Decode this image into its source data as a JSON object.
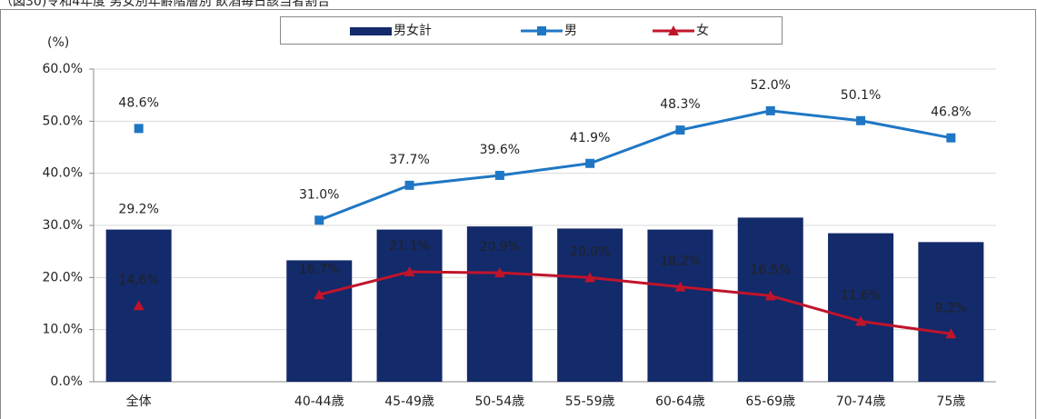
{
  "chart_data": {
    "type": "bar",
    "title": "（図30)令和4年度 男女別年齢階層別 飲酒毎日該当者割合",
    "y_label": "(%)",
    "categories": [
      "全体",
      null,
      "40-44歳",
      "45-49歳",
      "50-54歳",
      "55-59歳",
      "60-64歳",
      "65-69歳",
      "70-74歳",
      "75歳"
    ],
    "series": [
      {
        "name": "男女計",
        "type": "bar",
        "color": "#132a6b",
        "values": [
          29.2,
          null,
          23.3,
          29.2,
          29.8,
          29.4,
          29.2,
          31.5,
          28.5,
          26.8
        ],
        "value_labels": [
          "29.2%",
          null,
          null,
          null,
          null,
          null,
          null,
          null,
          null,
          null
        ]
      },
      {
        "name": "男",
        "type": "line",
        "color": "#1f77c4",
        "values": [
          48.6,
          null,
          31.0,
          37.7,
          39.6,
          41.9,
          48.3,
          52.0,
          50.1,
          46.8
        ],
        "value_labels": [
          "48.6%",
          null,
          "31.0%",
          "37.7%",
          "39.6%",
          "41.9%",
          "48.3%",
          "52.0%",
          "50.1%",
          "46.8%"
        ]
      },
      {
        "name": "女",
        "type": "line",
        "color": "#c0142b",
        "values": [
          14.6,
          null,
          16.7,
          21.1,
          20.9,
          20.0,
          18.2,
          16.5,
          11.6,
          9.2
        ],
        "value_labels": [
          "14.6%",
          null,
          "16.7%",
          "21.1%",
          "20.9%",
          "20.0%",
          "18.2%",
          "16.5%",
          "11.6%",
          "9.2%"
        ]
      }
    ],
    "ylim": [
      0,
      60
    ],
    "yticks": [
      {
        "value": 0,
        "label": "0.0%"
      },
      {
        "value": 10,
        "label": "10.0%"
      },
      {
        "value": 20,
        "label": "20.0%"
      },
      {
        "value": 30,
        "label": "30.0%"
      },
      {
        "value": 40,
        "label": "40.0%"
      },
      {
        "value": 50,
        "label": "50.0%"
      },
      {
        "value": 60,
        "label": "60.0%"
      }
    ],
    "grid": true,
    "legend": "top"
  }
}
